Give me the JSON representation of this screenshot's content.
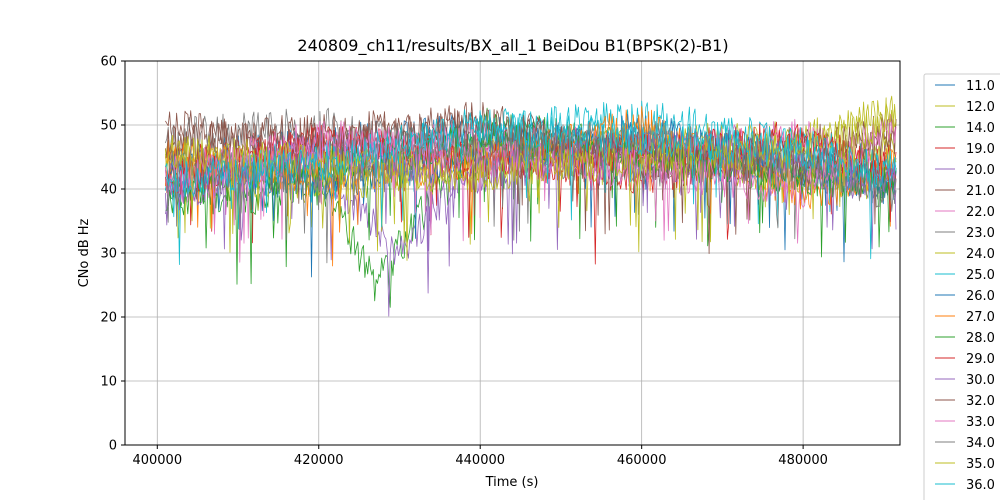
{
  "chart_data": {
    "type": "line",
    "title": "240809_ch11/results/BX_all_1 BeiDou B1(BPSK(2)-B1)",
    "xlabel": "Time (s)",
    "ylabel": "CNo dB Hz",
    "xlim": [
      396000,
      492000
    ],
    "ylim": [
      0,
      60
    ],
    "x_ticks": [
      400000,
      420000,
      440000,
      460000,
      480000
    ],
    "x_tick_labels": [
      "400000",
      "420000",
      "440000",
      "460000",
      "480000"
    ],
    "y_ticks": [
      0,
      10,
      20,
      30,
      40,
      50,
      60
    ],
    "y_tick_labels": [
      "0",
      "10",
      "20",
      "30",
      "40",
      "50",
      "60"
    ],
    "grid": true,
    "legend_position": "outside right",
    "series": [
      {
        "name": "11.0",
        "color": "#1f77b4",
        "x": [
          401000,
          420000,
          440000,
          460000,
          480000,
          491500
        ],
        "y": [
          44,
          47,
          49,
          46,
          43,
          40
        ]
      },
      {
        "name": "12.0",
        "color": "#bcbd22",
        "x": [
          401000,
          420000,
          440000,
          460000,
          480000,
          491500
        ],
        "y": [
          45,
          43,
          44,
          47,
          48,
          52
        ]
      },
      {
        "name": "14.0",
        "color": "#2ca02c",
        "x": [
          401000,
          410000,
          420000,
          427000,
          440000,
          460000,
          491500
        ],
        "y": [
          40,
          38,
          42,
          25,
          50,
          46,
          42
        ]
      },
      {
        "name": "19.0",
        "color": "#d62728",
        "x": [
          401000,
          420000,
          440000,
          460000,
          480000,
          491500
        ],
        "y": [
          43,
          48,
          45,
          42,
          46,
          44
        ]
      },
      {
        "name": "20.0",
        "color": "#9467bd",
        "x": [
          401000,
          420000,
          430000,
          440000,
          460000,
          491500
        ],
        "y": [
          41,
          44,
          30,
          46,
          44,
          42
        ]
      },
      {
        "name": "21.0",
        "color": "#8c564b",
        "x": [
          401000,
          420000,
          440000,
          460000,
          480000,
          491500
        ],
        "y": [
          50,
          46,
          51,
          44,
          47,
          49
        ]
      },
      {
        "name": "22.0",
        "color": "#e377c2",
        "x": [
          401000,
          420000,
          440000,
          460000,
          480000,
          491500
        ],
        "y": [
          40,
          45,
          48,
          46,
          48,
          41
        ]
      },
      {
        "name": "23.0",
        "color": "#7f7f7f",
        "x": [
          401000,
          420000,
          440000,
          460000,
          480000,
          491500
        ],
        "y": [
          48,
          50,
          46,
          43,
          45,
          40
        ]
      },
      {
        "name": "24.0",
        "color": "#bcbd22",
        "x": [
          401000,
          420000,
          440000,
          460000,
          480000,
          491500
        ],
        "y": [
          44,
          40,
          45,
          47,
          41,
          46
        ]
      },
      {
        "name": "25.0",
        "color": "#17becf",
        "x": [
          401000,
          420000,
          440000,
          460000,
          480000,
          491500
        ],
        "y": [
          42,
          45,
          49,
          51,
          47,
          43
        ]
      },
      {
        "name": "26.0",
        "color": "#1f77b4",
        "x": [
          401000,
          420000,
          440000,
          460000,
          480000,
          491500
        ],
        "y": [
          43,
          41,
          45,
          49,
          44,
          40
        ]
      },
      {
        "name": "27.0",
        "color": "#ff7f0e",
        "x": [
          401000,
          420000,
          440000,
          460000,
          480000,
          491500
        ],
        "y": [
          45,
          42,
          44,
          50,
          39,
          44
        ]
      },
      {
        "name": "28.0",
        "color": "#2ca02c",
        "x": [
          401000,
          420000,
          440000,
          460000,
          480000,
          491500
        ],
        "y": [
          38,
          43,
          48,
          45,
          42,
          41
        ]
      },
      {
        "name": "29.0",
        "color": "#d62728",
        "x": [
          401000,
          420000,
          440000,
          460000,
          480000,
          491500
        ],
        "y": [
          41,
          47,
          44,
          46,
          48,
          42
        ]
      },
      {
        "name": "30.0",
        "color": "#9467bd",
        "x": [
          401000,
          420000,
          440000,
          460000,
          480000,
          491500
        ],
        "y": [
          39,
          46,
          42,
          47,
          44,
          41
        ]
      },
      {
        "name": "32.0",
        "color": "#8c564b",
        "x": [
          401000,
          420000,
          440000,
          460000,
          480000,
          491500
        ],
        "y": [
          47,
          49,
          50,
          45,
          43,
          48
        ]
      },
      {
        "name": "33.0",
        "color": "#e377c2",
        "x": [
          401000,
          420000,
          440000,
          460000,
          480000,
          491500
        ],
        "y": [
          42,
          48,
          45,
          43,
          40,
          50
        ]
      },
      {
        "name": "34.0",
        "color": "#7f7f7f",
        "x": [
          401000,
          420000,
          440000,
          460000,
          480000,
          491500
        ],
        "y": [
          44,
          42,
          47,
          48,
          44,
          39
        ]
      },
      {
        "name": "35.0",
        "color": "#bcbd22",
        "x": [
          401000,
          420000,
          440000,
          460000,
          480000,
          491500
        ],
        "y": [
          46,
          44,
          42,
          45,
          46,
          51
        ]
      },
      {
        "name": "36.0",
        "color": "#17becf",
        "x": [
          401000,
          420000,
          440000,
          460000,
          480000,
          491500
        ],
        "y": [
          41,
          44,
          50,
          48,
          46,
          42
        ]
      }
    ]
  }
}
